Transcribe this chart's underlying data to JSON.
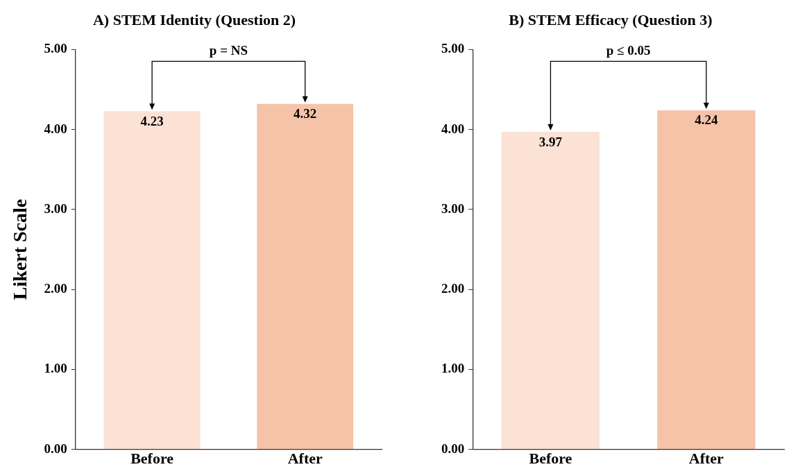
{
  "chart_data": [
    {
      "type": "bar",
      "title": "A) STEM Identity (Question 2)",
      "ylabel": "Likert Scale",
      "categories": [
        "Before",
        "After"
      ],
      "values": [
        4.23,
        4.32
      ],
      "colors": [
        "#fbe2d5",
        "#f5c4a8"
      ],
      "ylim": [
        0,
        5
      ],
      "yticks": [
        {
          "value": 0,
          "label": "0.00"
        },
        {
          "value": 1,
          "label": "1.00"
        },
        {
          "value": 2,
          "label": "2.00"
        },
        {
          "value": 3,
          "label": "3.00"
        },
        {
          "value": 4,
          "label": "4.00"
        },
        {
          "value": 5,
          "label": "5.00"
        }
      ],
      "data_labels": true,
      "grid": false,
      "legend": false,
      "annotations": [
        "p = NS"
      ]
    },
    {
      "type": "bar",
      "title": "B) STEM Efficacy (Question 3)",
      "categories": [
        "Before",
        "After"
      ],
      "values": [
        3.97,
        4.24
      ],
      "colors": [
        "#fbe2d5",
        "#f5c4a8"
      ],
      "ylim": [
        0,
        5
      ],
      "yticks": [
        {
          "value": 0,
          "label": "0.00"
        },
        {
          "value": 1,
          "label": "1.00"
        },
        {
          "value": 2,
          "label": "2.00"
        },
        {
          "value": 3,
          "label": "3.00"
        },
        {
          "value": 4,
          "label": "4.00"
        },
        {
          "value": 5,
          "label": "5.00"
        }
      ],
      "data_labels": true,
      "grid": false,
      "legend": false,
      "annotations": [
        "p ≤ 0.05"
      ]
    }
  ]
}
